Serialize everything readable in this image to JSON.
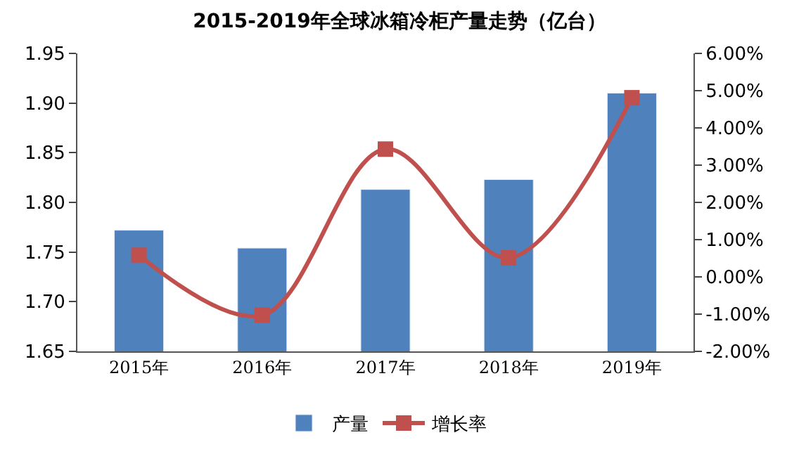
{
  "chart_data": {
    "type": "bar",
    "title": "2015-2019年全球冰箱冷柜产量走势（亿台）",
    "categories": [
      "2015年",
      "2016年",
      "2017年",
      "2018年",
      "2019年"
    ],
    "series": [
      {
        "name": "产量",
        "color": "#4f81bd",
        "values": [
          1.772,
          1.754,
          1.813,
          1.823,
          1.91
        ]
      },
      {
        "name": "增长率",
        "type": "line",
        "axis": "y2",
        "color": "#c0504d",
        "marker": "square",
        "values": [
          0.58,
          -1.03,
          3.43,
          0.51,
          4.81
        ]
      }
    ],
    "ylim": [
      1.65,
      1.95
    ],
    "yticks": [
      {
        "value": 1.65,
        "label": "1.65"
      },
      {
        "value": 1.7,
        "label": "1.70"
      },
      {
        "value": 1.75,
        "label": "1.75"
      },
      {
        "value": 1.8,
        "label": "1.80"
      },
      {
        "value": 1.85,
        "label": "1.85"
      },
      {
        "value": 1.9,
        "label": "1.90"
      },
      {
        "value": 1.95,
        "label": "1.95"
      }
    ],
    "y2lim": [
      -2,
      6
    ],
    "y2ticks": [
      {
        "value": -2,
        "label": "-2.00%"
      },
      {
        "value": -1,
        "label": "-1.00%"
      },
      {
        "value": 0,
        "label": "0.00%"
      },
      {
        "value": 1,
        "label": "1.00%"
      },
      {
        "value": 2,
        "label": "2.00%"
      },
      {
        "value": 3,
        "label": "3.00%"
      },
      {
        "value": 4,
        "label": "4.00%"
      },
      {
        "value": 5,
        "label": "5.00%"
      },
      {
        "value": 6,
        "label": "6.00%"
      }
    ],
    "legend": "bottom"
  }
}
